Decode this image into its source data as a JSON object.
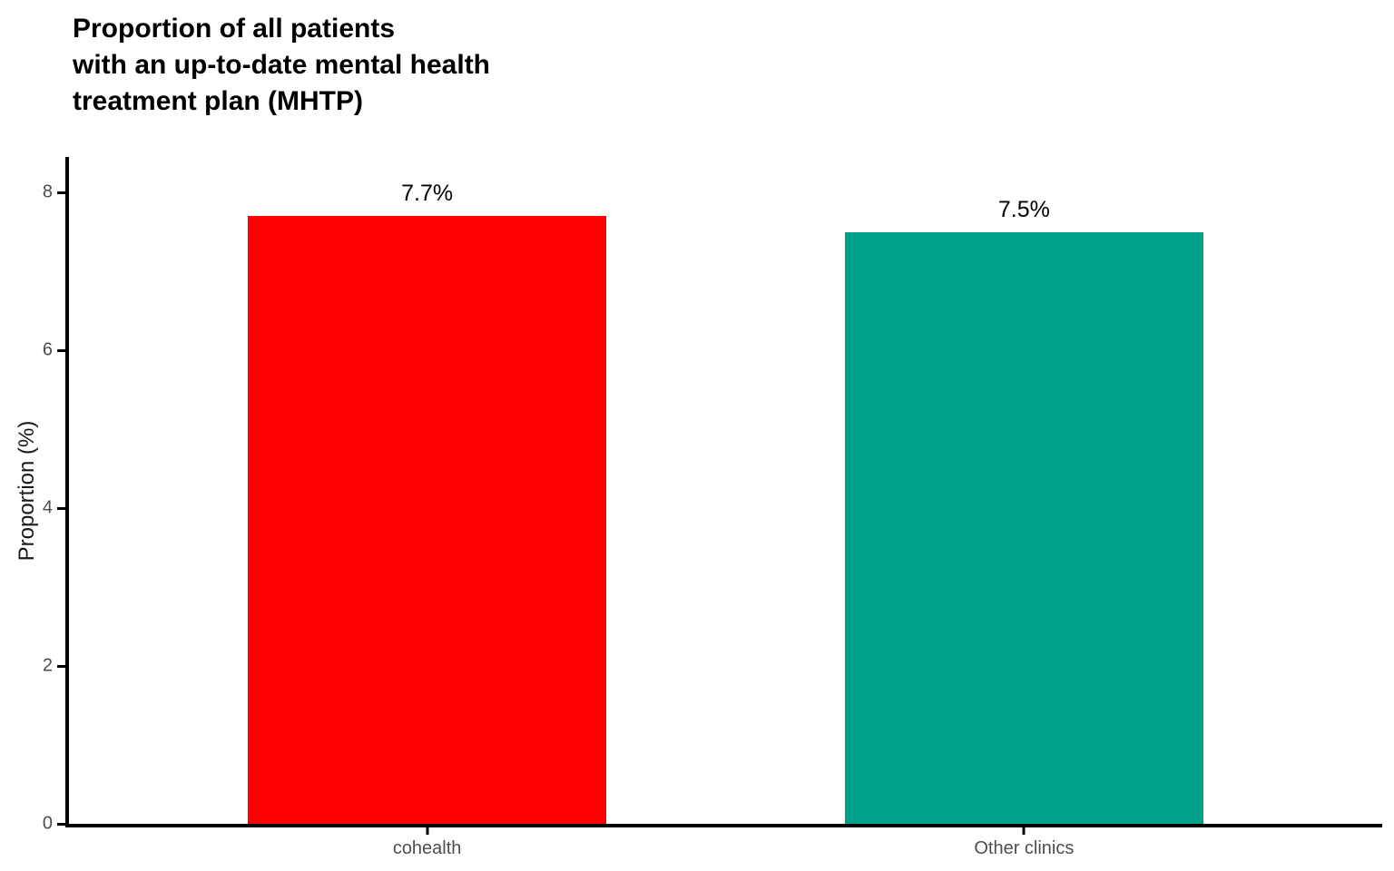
{
  "chart_data": {
    "type": "bar",
    "title_lines": [
      "Proportion of all patients",
      "with an up-to-date mental health",
      "treatment plan (MHTP)"
    ],
    "ylabel": "Proportion (%)",
    "xlabel": "",
    "categories": [
      "cohealth",
      "Other clinics"
    ],
    "values": [
      7.7,
      7.5
    ],
    "value_labels": [
      "7.7%",
      "7.5%"
    ],
    "bar_colors": [
      "#FF0000",
      "#00A08A"
    ],
    "yticks": [
      0,
      2,
      4,
      6,
      8
    ],
    "ytick_labels": [
      "0",
      "2",
      "4",
      "6",
      "8"
    ],
    "ylim": [
      0,
      8.45
    ],
    "grid": false,
    "legend_position": "none",
    "colors": {
      "background": "#FFFFFF",
      "axis": "#000000",
      "tick_text": "#4D4D4D",
      "title_text": "#000000",
      "value_label_text": "#000000"
    }
  }
}
